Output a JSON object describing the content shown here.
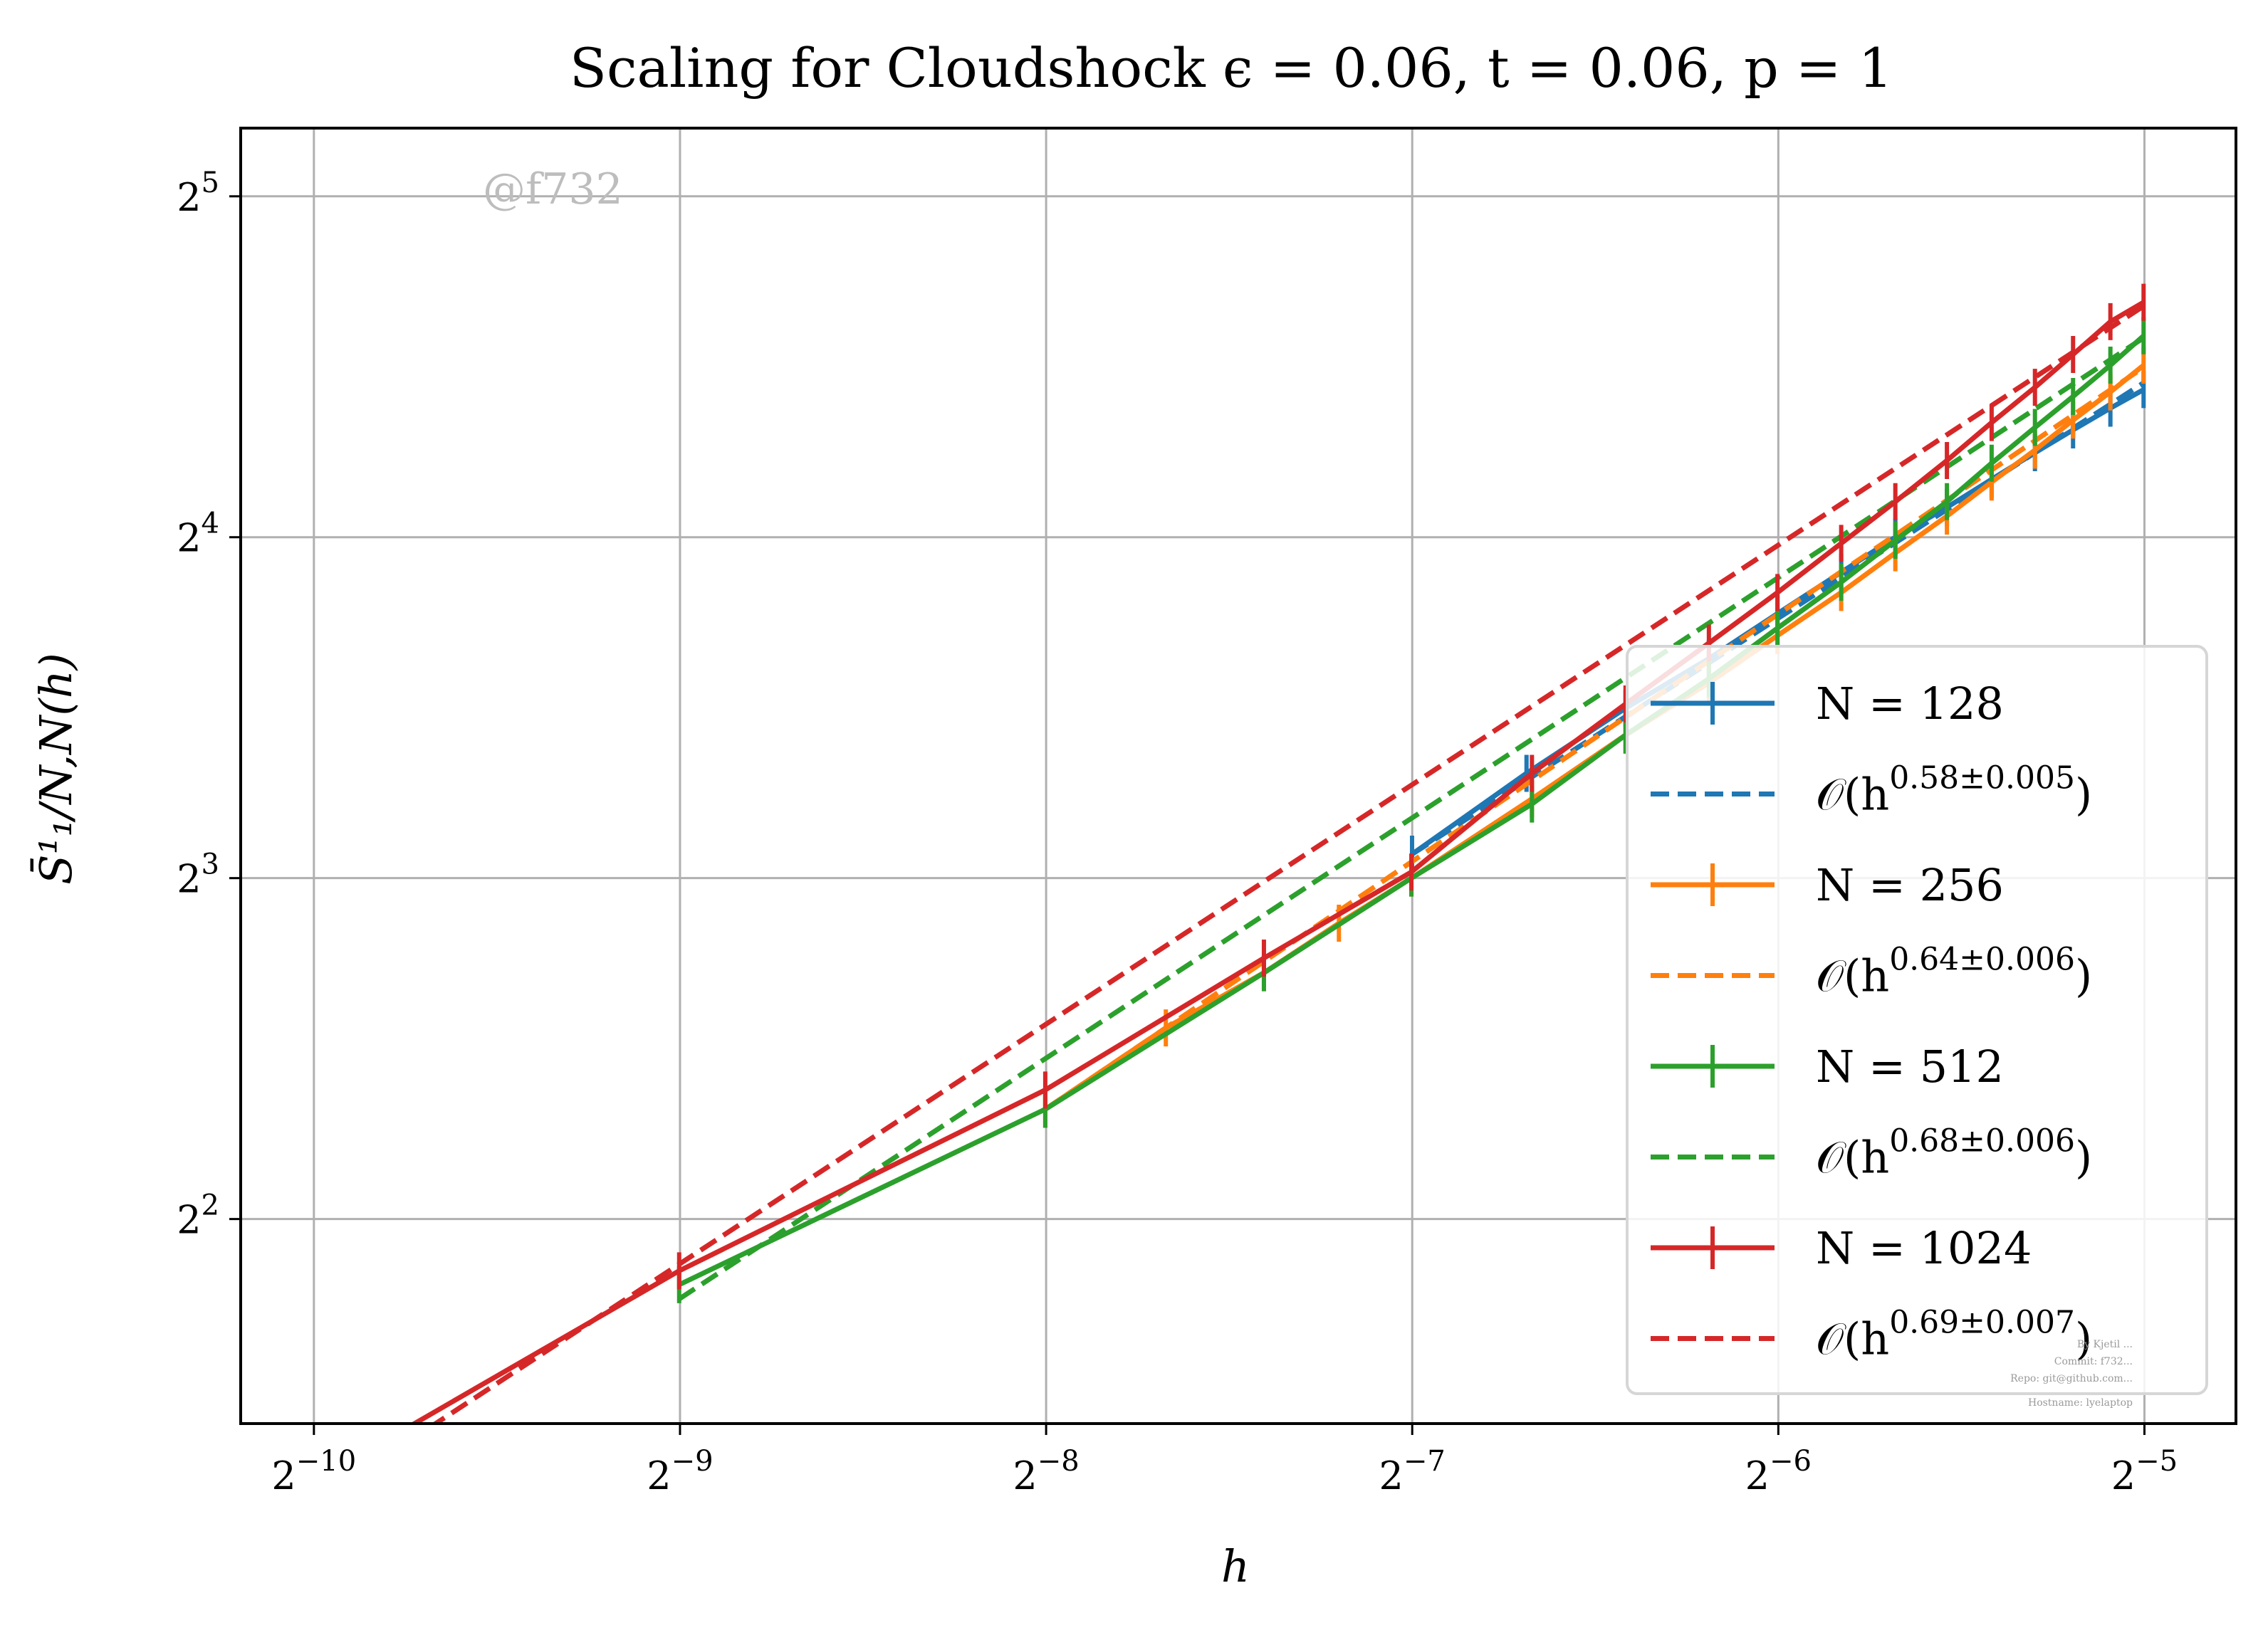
{
  "chart_data": {
    "type": "line",
    "title": "Scaling for Cloudshock ϵ = 0.06, t = 0.06, p = 1",
    "xlabel": "h",
    "ylabel": "S̄¹₁/N,N(h)",
    "xscale": "log2",
    "yscale": "log2",
    "xlim_exp": [
      -10.2,
      -4.75
    ],
    "ylim_exp": [
      1.4,
      5.2
    ],
    "x_ticks": [
      {
        "base": "2",
        "exp": "−10",
        "value": -10
      },
      {
        "base": "2",
        "exp": "−9",
        "value": -9
      },
      {
        "base": "2",
        "exp": "−8",
        "value": -8
      },
      {
        "base": "2",
        "exp": "−7",
        "value": -7
      },
      {
        "base": "2",
        "exp": "−6",
        "value": -6
      },
      {
        "base": "2",
        "exp": "−5",
        "value": -5
      }
    ],
    "y_ticks": [
      {
        "base": "2",
        "exp": "2",
        "value": 2
      },
      {
        "base": "2",
        "exp": "3",
        "value": 3
      },
      {
        "base": "2",
        "exp": "4",
        "value": 4
      },
      {
        "base": "2",
        "exp": "5",
        "value": 5
      }
    ],
    "grid": true,
    "legend_position": "lower-right",
    "series": [
      {
        "name": "N = 128",
        "color": "#1f77b4",
        "style": "solid-errorbar",
        "x": [
          0.00781,
          0.0097,
          0.0117,
          0.0137,
          0.0156,
          0.0176,
          0.0195,
          0.0215,
          0.0234,
          0.0254,
          0.0273,
          0.0293,
          0.0312
        ],
        "y": [
          8.4,
          9.9,
          11.3,
          12.5,
          13.7,
          14.9,
          16.0,
          17.0,
          18.0,
          19.0,
          19.9,
          20.8,
          21.6
        ]
      },
      {
        "name": "O(h^{0.58±0.005})",
        "color": "#1f77b4",
        "style": "dashed",
        "x": [
          0.00781,
          0.0312
        ],
        "y": [
          8.4,
          21.9
        ]
      },
      {
        "name": "N = 256",
        "color": "#ff7f0e",
        "style": "solid-errorbar",
        "x": [
          0.0039,
          0.0049,
          0.0059,
          0.0068,
          0.0078,
          0.0098,
          0.0117,
          0.0137,
          0.0156,
          0.0176,
          0.0195,
          0.0215,
          0.0234,
          0.0254,
          0.0273,
          0.0293,
          0.0312
        ],
        "y": [
          5.0,
          5.9,
          6.6,
          7.3,
          8.0,
          9.4,
          10.7,
          11.9,
          13.1,
          14.3,
          15.5,
          16.7,
          17.9,
          19.1,
          20.3,
          21.5,
          22.7
        ]
      },
      {
        "name": "O(h^{0.64±0.006})",
        "color": "#ff7f0e",
        "style": "dashed",
        "x": [
          0.0039,
          0.0312
        ],
        "y": [
          5.0,
          22.6
        ]
      },
      {
        "name": "N = 512",
        "color": "#2ca02c",
        "style": "solid-errorbar",
        "x": [
          0.00195,
          0.0039,
          0.0059,
          0.0078,
          0.0098,
          0.0117,
          0.0137,
          0.0156,
          0.0176,
          0.0195,
          0.0215,
          0.0234,
          0.0254,
          0.0273,
          0.0293,
          0.0312
        ],
        "y": [
          3.5,
          5.0,
          6.6,
          8.0,
          9.3,
          10.7,
          12.0,
          13.3,
          14.6,
          15.9,
          17.2,
          18.6,
          20.0,
          21.3,
          22.7,
          24.1
        ]
      },
      {
        "name": "O(h^{0.68±0.006})",
        "color": "#2ca02c",
        "style": "dashed",
        "x": [
          0.00195,
          0.0312
        ],
        "y": [
          3.4,
          24.0
        ]
      },
      {
        "name": "N = 1024",
        "color": "#d62728",
        "style": "solid-errorbar",
        "x": [
          0.00098,
          0.00195,
          0.0039,
          0.0059,
          0.0078,
          0.0098,
          0.0117,
          0.0137,
          0.0156,
          0.0176,
          0.0195,
          0.0215,
          0.0234,
          0.0254,
          0.0273,
          0.0293,
          0.0312
        ],
        "y": [
          2.35,
          3.6,
          5.2,
          6.8,
          8.1,
          9.9,
          11.4,
          12.9,
          14.3,
          15.8,
          17.2,
          18.7,
          20.2,
          21.7,
          23.2,
          24.8,
          25.8
        ]
      },
      {
        "name": "O(h^{0.69±0.007})",
        "color": "#d62728",
        "style": "dashed",
        "x": [
          0.00098,
          0.0312
        ],
        "y": [
          2.25,
          25.6
        ]
      }
    ],
    "legend": [
      {
        "kind": "line",
        "color": "#1f77b4",
        "label": "N = 128"
      },
      {
        "kind": "dash",
        "color": "#1f77b4",
        "label": "𝒪(h",
        "sup": "0.58±0.005",
        "tail": ")"
      },
      {
        "kind": "line",
        "color": "#ff7f0e",
        "label": "N = 256"
      },
      {
        "kind": "dash",
        "color": "#ff7f0e",
        "label": "𝒪(h",
        "sup": "0.64±0.006",
        "tail": ")"
      },
      {
        "kind": "line",
        "color": "#2ca02c",
        "label": "N = 512"
      },
      {
        "kind": "dash",
        "color": "#2ca02c",
        "label": "𝒪(h",
        "sup": "0.68±0.006",
        "tail": ")"
      },
      {
        "kind": "line",
        "color": "#d62728",
        "label": "N = 1024"
      },
      {
        "kind": "dash",
        "color": "#d62728",
        "label": "𝒪(h",
        "sup": "0.69±0.007",
        "tail": ")"
      }
    ]
  },
  "watermark": "@f732",
  "footer_lines": [
    "By Kjetil ...",
    "Commit: f732...",
    "Repo: git@github.com...",
    "Hostname: lyelaptop"
  ]
}
